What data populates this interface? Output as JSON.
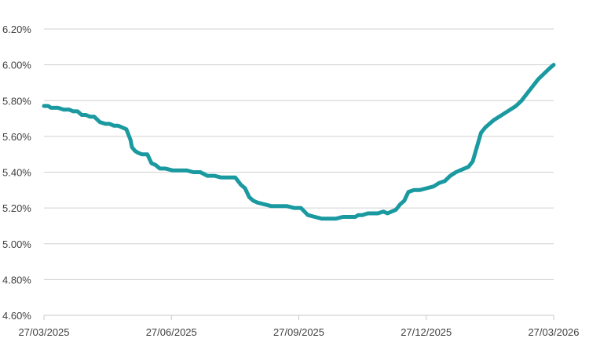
{
  "chart_data": {
    "type": "line",
    "title": "",
    "xlabel": "",
    "ylabel": "",
    "x_ticks": [
      "27/03/2025",
      "27/06/2025",
      "27/09/2025",
      "27/12/2025",
      "27/03/2026"
    ],
    "y_ticks": [
      "4.60%",
      "4.80%",
      "5.00%",
      "5.20%",
      "5.40%",
      "5.60%",
      "5.80%",
      "6.00%",
      "6.20%"
    ],
    "ylim": [
      4.6,
      6.2
    ],
    "xlim": [
      "2025-03-27",
      "2026-03-27"
    ],
    "grid": true,
    "colors": {
      "series": "#1a9aa0",
      "grid": "#d0d0d0",
      "text": "#404040"
    },
    "series": [
      {
        "x": [
          "2025-03-27",
          "2025-03-30",
          "2025-04-01",
          "2025-04-03",
          "2025-04-06",
          "2025-04-10",
          "2025-04-14",
          "2025-04-17",
          "2025-04-20",
          "2025-04-23",
          "2025-04-26",
          "2025-04-29",
          "2025-05-02",
          "2025-05-06",
          "2025-05-10",
          "2025-05-13",
          "2025-05-16",
          "2025-05-19",
          "2025-05-22",
          "2025-05-25",
          "2025-05-28",
          "2025-05-29",
          "2025-05-31",
          "2025-06-02",
          "2025-06-05",
          "2025-06-09",
          "2025-06-12",
          "2025-06-15",
          "2025-06-18",
          "2025-06-22",
          "2025-06-27",
          "2025-07-02",
          "2025-07-07",
          "2025-07-12",
          "2025-07-17",
          "2025-07-22",
          "2025-07-27",
          "2025-08-01",
          "2025-08-06",
          "2025-08-11",
          "2025-08-15",
          "2025-08-18",
          "2025-08-21",
          "2025-08-24",
          "2025-08-27",
          "2025-09-01",
          "2025-09-06",
          "2025-09-12",
          "2025-09-17",
          "2025-09-22",
          "2025-09-27",
          "2025-10-02",
          "2025-10-07",
          "2025-10-12",
          "2025-10-17",
          "2025-10-22",
          "2025-10-27",
          "2025-11-01",
          "2025-11-05",
          "2025-11-07",
          "2025-11-10",
          "2025-11-14",
          "2025-11-18",
          "2025-11-21",
          "2025-11-25",
          "2025-11-28",
          "2025-12-01",
          "2025-12-04",
          "2025-12-07",
          "2025-12-10",
          "2025-12-13",
          "2025-12-17",
          "2025-12-21",
          "2025-12-26",
          "2025-12-31",
          "2026-01-04",
          "2026-01-08",
          "2026-01-12",
          "2026-01-16",
          "2026-01-19",
          "2026-01-22",
          "2026-01-25",
          "2026-01-28",
          "2026-01-31",
          "2026-02-03",
          "2026-02-06",
          "2026-02-09",
          "2026-02-12",
          "2026-02-16",
          "2026-02-20",
          "2026-02-24",
          "2026-02-28",
          "2026-03-04",
          "2026-03-08",
          "2026-03-12",
          "2026-03-16",
          "2026-03-20",
          "2026-03-24",
          "2026-03-27"
        ],
        "values": [
          5.77,
          5.77,
          5.76,
          5.76,
          5.76,
          5.75,
          5.75,
          5.74,
          5.74,
          5.72,
          5.72,
          5.71,
          5.71,
          5.68,
          5.67,
          5.67,
          5.66,
          5.66,
          5.65,
          5.64,
          5.58,
          5.54,
          5.52,
          5.51,
          5.5,
          5.5,
          5.45,
          5.44,
          5.42,
          5.42,
          5.41,
          5.41,
          5.41,
          5.4,
          5.4,
          5.38,
          5.38,
          5.37,
          5.37,
          5.37,
          5.33,
          5.31,
          5.26,
          5.24,
          5.23,
          5.22,
          5.21,
          5.21,
          5.21,
          5.2,
          5.2,
          5.16,
          5.15,
          5.14,
          5.14,
          5.14,
          5.15,
          5.15,
          5.15,
          5.16,
          5.16,
          5.17,
          5.17,
          5.17,
          5.18,
          5.17,
          5.18,
          5.19,
          5.22,
          5.24,
          5.29,
          5.3,
          5.3,
          5.31,
          5.32,
          5.34,
          5.35,
          5.38,
          5.4,
          5.41,
          5.42,
          5.43,
          5.46,
          5.54,
          5.62,
          5.65,
          5.67,
          5.69,
          5.71,
          5.73,
          5.75,
          5.77,
          5.8,
          5.84,
          5.88,
          5.92,
          5.95,
          5.98,
          6.0
        ]
      }
    ]
  }
}
